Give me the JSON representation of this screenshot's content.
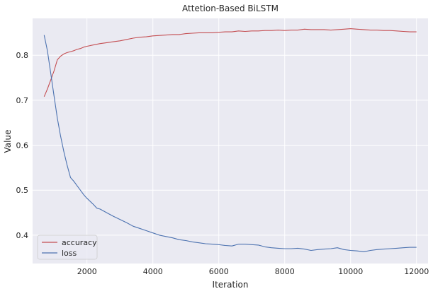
{
  "chart_data": {
    "type": "line",
    "title": "Attetion-Based BiLSTM",
    "xlabel": "Iteration",
    "ylabel": "Value",
    "xlim": [
      350,
      12350
    ],
    "ylim": [
      0.337,
      0.882
    ],
    "xticks": [
      2000,
      4000,
      6000,
      8000,
      10000,
      12000
    ],
    "yticks": [
      0.4,
      0.5,
      0.6,
      0.7,
      0.8
    ],
    "grid": true,
    "legend_position": "lower-left",
    "background": "#eaeaf2",
    "gridColor": "#ffffff",
    "series": [
      {
        "name": "accuracy",
        "color": "#c44e52",
        "x": [
          700,
          800,
          900,
          1000,
          1100,
          1200,
          1300,
          1400,
          1500,
          1600,
          1700,
          1800,
          1900,
          2000,
          2200,
          2400,
          2600,
          2800,
          3000,
          3200,
          3400,
          3600,
          3800,
          4000,
          4200,
          4400,
          4600,
          4800,
          5000,
          5200,
          5400,
          5600,
          5800,
          6000,
          6200,
          6400,
          6600,
          6800,
          7000,
          7200,
          7400,
          7600,
          7800,
          8000,
          8200,
          8400,
          8600,
          8800,
          9000,
          9200,
          9400,
          9600,
          9800,
          10000,
          10200,
          10400,
          10600,
          10800,
          11000,
          11200,
          11400,
          11600,
          11800,
          12000
        ],
        "y": [
          0.708,
          0.725,
          0.745,
          0.765,
          0.79,
          0.798,
          0.803,
          0.806,
          0.808,
          0.81,
          0.813,
          0.815,
          0.818,
          0.82,
          0.823,
          0.826,
          0.828,
          0.83,
          0.832,
          0.835,
          0.838,
          0.84,
          0.841,
          0.843,
          0.844,
          0.845,
          0.846,
          0.846,
          0.848,
          0.849,
          0.85,
          0.85,
          0.85,
          0.851,
          0.852,
          0.852,
          0.854,
          0.853,
          0.854,
          0.854,
          0.855,
          0.855,
          0.856,
          0.855,
          0.856,
          0.856,
          0.858,
          0.857,
          0.857,
          0.857,
          0.856,
          0.857,
          0.858,
          0.859,
          0.858,
          0.857,
          0.856,
          0.856,
          0.855,
          0.855,
          0.854,
          0.853,
          0.852,
          0.852
        ]
      },
      {
        "name": "loss",
        "color": "#4c72b0",
        "x": [
          700,
          800,
          900,
          1000,
          1100,
          1200,
          1300,
          1400,
          1500,
          1600,
          1700,
          1800,
          1900,
          2000,
          2200,
          2300,
          2400,
          2600,
          2800,
          3000,
          3200,
          3400,
          3600,
          3800,
          4000,
          4200,
          4400,
          4600,
          4800,
          5000,
          5200,
          5400,
          5600,
          5800,
          6000,
          6200,
          6400,
          6600,
          6800,
          7000,
          7200,
          7400,
          7600,
          7800,
          8000,
          8200,
          8400,
          8600,
          8800,
          9000,
          9200,
          9400,
          9600,
          9800,
          10000,
          10200,
          10400,
          10600,
          10800,
          11000,
          11200,
          11400,
          11600,
          11800,
          12000
        ],
        "y": [
          0.845,
          0.81,
          0.76,
          0.71,
          0.66,
          0.62,
          0.585,
          0.555,
          0.528,
          0.52,
          0.51,
          0.5,
          0.49,
          0.482,
          0.468,
          0.46,
          0.458,
          0.45,
          0.442,
          0.435,
          0.428,
          0.42,
          0.415,
          0.41,
          0.405,
          0.4,
          0.397,
          0.394,
          0.39,
          0.388,
          0.385,
          0.383,
          0.381,
          0.38,
          0.379,
          0.377,
          0.376,
          0.38,
          0.38,
          0.379,
          0.378,
          0.374,
          0.372,
          0.371,
          0.37,
          0.37,
          0.371,
          0.369,
          0.366,
          0.368,
          0.369,
          0.37,
          0.372,
          0.368,
          0.366,
          0.365,
          0.363,
          0.366,
          0.368,
          0.369,
          0.37,
          0.371,
          0.372,
          0.373,
          0.373
        ]
      }
    ]
  }
}
